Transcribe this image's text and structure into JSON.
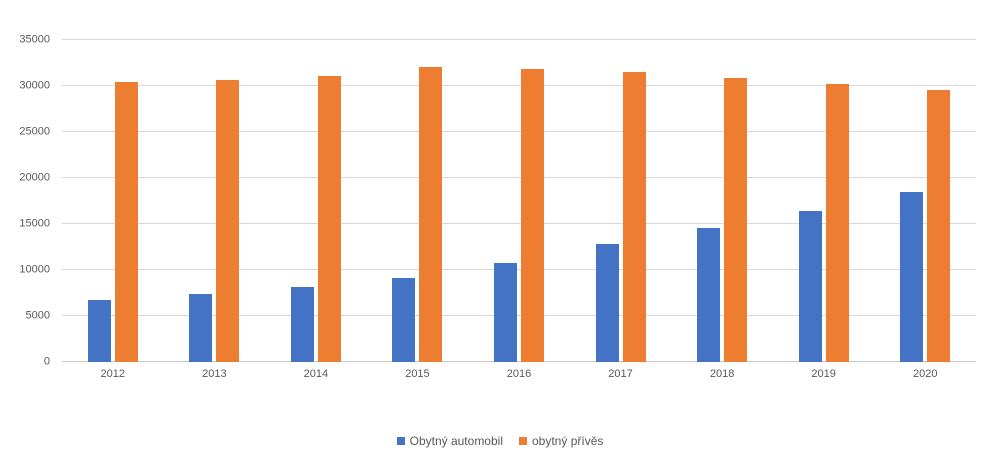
{
  "chart_data": {
    "type": "bar",
    "title": "",
    "xlabel": "",
    "ylabel": "",
    "categories": [
      "2012",
      "2013",
      "2014",
      "2015",
      "2016",
      "2017",
      "2018",
      "2019",
      "2020"
    ],
    "series": [
      {
        "name": "Obytný automobil",
        "key": "obytny-automobil",
        "color": "#4472C4",
        "values": [
          6700,
          7400,
          8150,
          9150,
          10750,
          12800,
          14600,
          16450,
          18450
        ]
      },
      {
        "name": "obytný přívěs",
        "key": "obytny-prives",
        "color": "#ED7D31",
        "values": [
          30400,
          30650,
          31100,
          32100,
          31900,
          31500,
          30900,
          30200,
          29600
        ]
      }
    ],
    "ylim": [
      0,
      35000
    ],
    "yticks": [
      0,
      5000,
      10000,
      15000,
      20000,
      25000,
      30000,
      35000
    ],
    "grid": true,
    "legend_position": "bottom",
    "colors": {
      "gridline": "#D9D9D9",
      "axis_line": "#C9C9C9",
      "label_text": "#595959",
      "background": "#FFFFFF"
    }
  }
}
